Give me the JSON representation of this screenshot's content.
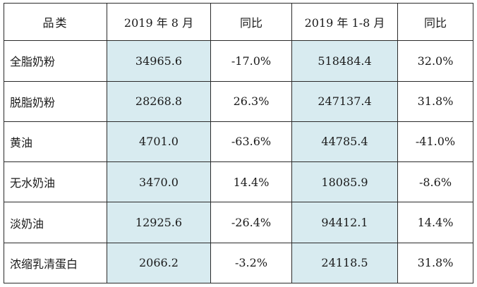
{
  "table": {
    "headers": [
      "品类",
      "2019 年 8 月",
      "同比",
      "2019 年 1-8 月",
      "同比"
    ],
    "rows": [
      [
        "全脂奶粉",
        "34965.6",
        "-17.0%",
        "518484.4",
        "32.0%"
      ],
      [
        "脱脂奶粉",
        "28268.8",
        "26.3%",
        "247137.4",
        "31.8%"
      ],
      [
        "黄油",
        "4701.0",
        "-63.6%",
        "44785.4",
        "-41.0%"
      ],
      [
        "无水奶油",
        "3470.0",
        "14.4%",
        "18085.9",
        "-8.6%"
      ],
      [
        "淡奶油",
        "12925.6",
        "-26.4%",
        "94412.1",
        "14.4%"
      ],
      [
        "浓缩乳清蛋白",
        "2066.2",
        "-3.2%",
        "24118.5",
        "31.8%"
      ]
    ]
  },
  "colors": {
    "shaded_cell": "#d8ebf0",
    "border": "#2a2a2a"
  }
}
